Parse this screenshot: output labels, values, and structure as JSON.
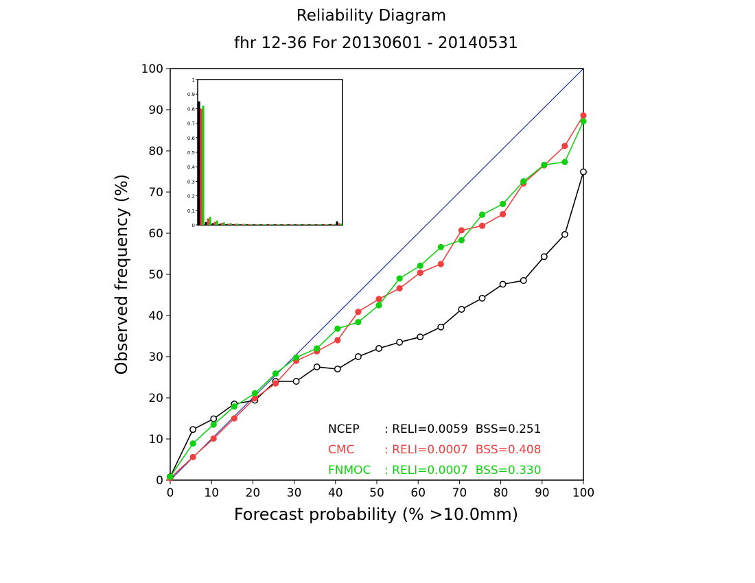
{
  "chart_data": {
    "type": "line",
    "title": "Reliability Diagram",
    "subtitle": "fhr 12-36 For 20130601 - 20140531",
    "xlabel": "Forecast probability (% >10.0mm)",
    "ylabel": "Observed frequency (%)",
    "xlim": [
      0,
      100
    ],
    "ylim": [
      0,
      100
    ],
    "xticks": [
      "0",
      "10",
      "20",
      "30",
      "40",
      "50",
      "60",
      "70",
      "80",
      "90",
      "100"
    ],
    "yticks": [
      "0",
      "10",
      "20",
      "30",
      "40",
      "50",
      "60",
      "70",
      "80",
      "90",
      "100"
    ],
    "grid": false,
    "x": [
      0,
      5.5,
      10.5,
      15.5,
      20.5,
      25.5,
      30.5,
      35.5,
      40.5,
      45.5,
      50.5,
      55.5,
      60.5,
      65.5,
      70.5,
      75.5,
      80.5,
      85.5,
      90.5,
      95.5,
      100
    ],
    "series": [
      {
        "name": "NCEP",
        "color": "#000000",
        "marker": "open-circle",
        "values": [
          0.8,
          12.3,
          14.9,
          18.5,
          19.4,
          24.0,
          24.0,
          27.5,
          27.0,
          30.0,
          32.0,
          33.5,
          34.8,
          37.2,
          41.5,
          44.2,
          47.6,
          48.5,
          54.3,
          59.7,
          74.9
        ]
      },
      {
        "name": "CMC",
        "color": "#f04040",
        "marker": "filled-circle",
        "values": [
          0.5,
          5.6,
          10.1,
          15.0,
          19.9,
          23.5,
          29.0,
          31.3,
          34.0,
          40.9,
          44.0,
          46.6,
          50.4,
          52.5,
          60.7,
          61.8,
          64.6,
          72.1,
          76.5,
          81.2,
          88.6
        ]
      },
      {
        "name": "FNMOC",
        "color": "#10d010",
        "marker": "filled-circle",
        "values": [
          0.8,
          8.9,
          13.5,
          17.9,
          21.1,
          25.9,
          29.8,
          32.0,
          36.8,
          38.4,
          42.5,
          49.0,
          52.1,
          56.6,
          58.3,
          64.5,
          67.1,
          72.6,
          76.6,
          77.3,
          87.2
        ]
      }
    ],
    "diagonal_color": "#2030b0",
    "legend": {
      "placement": "bottom-right",
      "rows": [
        {
          "name": "NCEP",
          "text": ": RELI=0.0059  BSS=0.251",
          "color": "#000000"
        },
        {
          "name": "CMC",
          "text": ": RELI=0.0007  BSS=0.408",
          "color": "#f04040"
        },
        {
          "name": "FNMOC",
          "text": ": RELI=0.0007  BSS=0.330",
          "color": "#10d010"
        }
      ]
    },
    "inset": {
      "type": "bar",
      "ylim": [
        0,
        1
      ],
      "yticks": [
        "0",
        "0.1",
        "0.2",
        "0.3",
        "0.4",
        "0.5",
        "0.6",
        "0.7",
        "0.8",
        "0.9",
        "1"
      ],
      "bins": 21,
      "series": [
        {
          "name": "NCEP",
          "color": "#000000",
          "values": [
            0.85,
            0.02,
            0.012,
            0.008,
            0.006,
            0.005,
            0.004,
            0.004,
            0.003,
            0.003,
            0.003,
            0.003,
            0.003,
            0.003,
            0.003,
            0.003,
            0.003,
            0.003,
            0.004,
            0.006,
            0.025
          ]
        },
        {
          "name": "CMC",
          "color": "#f04040",
          "values": [
            0.8,
            0.045,
            0.022,
            0.014,
            0.01,
            0.008,
            0.007,
            0.006,
            0.005,
            0.005,
            0.004,
            0.004,
            0.004,
            0.004,
            0.004,
            0.004,
            0.004,
            0.004,
            0.005,
            0.006,
            0.012
          ]
        },
        {
          "name": "FNMOC",
          "color": "#10d010",
          "values": [
            0.82,
            0.055,
            0.03,
            0.018,
            0.012,
            0.009,
            0.007,
            0.006,
            0.005,
            0.005,
            0.004,
            0.004,
            0.004,
            0.004,
            0.004,
            0.004,
            0.004,
            0.004,
            0.005,
            0.006,
            0.01
          ]
        }
      ]
    }
  }
}
